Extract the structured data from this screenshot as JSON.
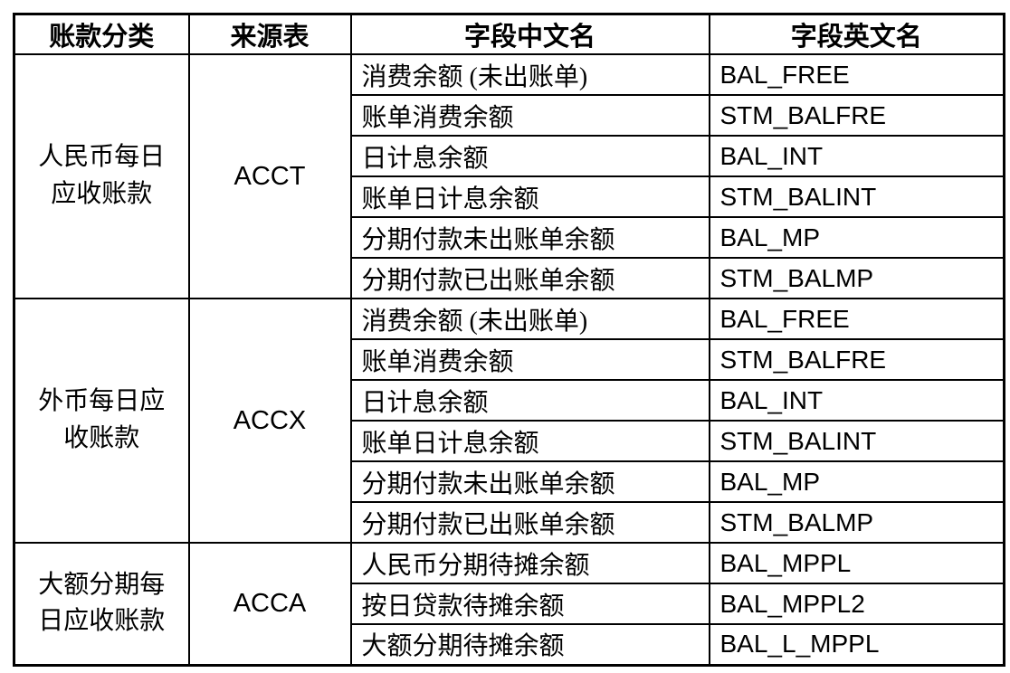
{
  "page": {
    "background": "#ffffff",
    "border_color": "#000000",
    "text_color": "#000000"
  },
  "table": {
    "headers": [
      {
        "label": "账款分类"
      },
      {
        "label": "来源表"
      },
      {
        "label": "字段中文名"
      },
      {
        "label": "字段英文名"
      }
    ],
    "groups": [
      {
        "category": "人民币每日应收账款",
        "source": "ACCT",
        "fields": [
          {
            "cn": "消费余额 (未出账单)",
            "en": "BAL_FREE"
          },
          {
            "cn": "账单消费余额",
            "en": "STM_BALFRE"
          },
          {
            "cn": "日计息余额",
            "en": "BAL_INT"
          },
          {
            "cn": "账单日计息余额",
            "en": "STM_BALINT"
          },
          {
            "cn": "分期付款未出账单余额",
            "en": "BAL_MP"
          },
          {
            "cn": "分期付款已出账单余额",
            "en": "STM_BALMP"
          }
        ]
      },
      {
        "category": "外币每日应收账款",
        "source": "ACCX",
        "fields": [
          {
            "cn": "消费余额 (未出账单)",
            "en": "BAL_FREE"
          },
          {
            "cn": "账单消费余额",
            "en": "STM_BALFRE"
          },
          {
            "cn": "日计息余额",
            "en": "BAL_INT"
          },
          {
            "cn": "账单日计息余额",
            "en": "STM_BALINT"
          },
          {
            "cn": "分期付款未出账单余额",
            "en": "BAL_MP"
          },
          {
            "cn": "分期付款已出账单余额",
            "en": "STM_BALMP"
          }
        ]
      },
      {
        "category": "大额分期每日应收账款",
        "source": "ACCA",
        "fields": [
          {
            "cn": "人民币分期待摊余额",
            "en": "BAL_MPPL"
          },
          {
            "cn": "按日贷款待摊余额",
            "en": "BAL_MPPL2"
          },
          {
            "cn": "大额分期待摊余额",
            "en": "BAL_L_MPPL"
          }
        ]
      }
    ]
  }
}
